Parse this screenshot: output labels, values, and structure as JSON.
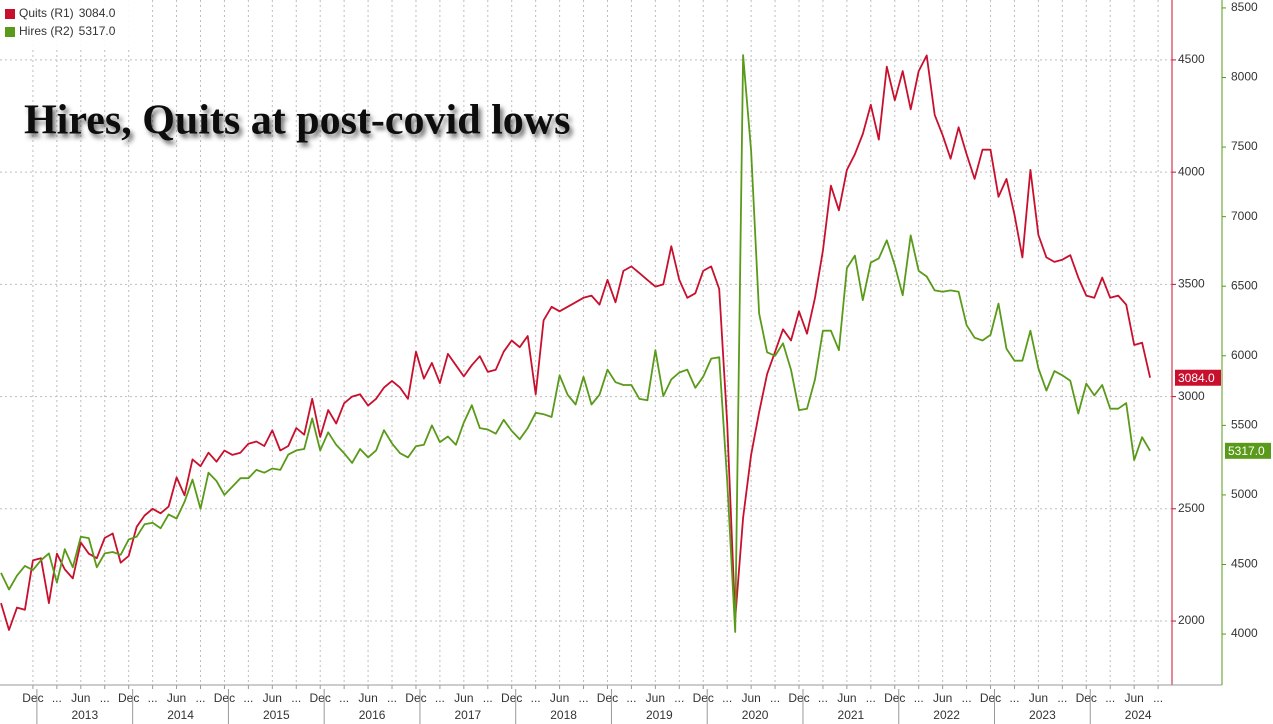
{
  "chart_data": {
    "type": "line",
    "title": "Hires, Quits at post-covid lows",
    "x": [
      "2012-08",
      "2012-09",
      "2012-10",
      "2012-11",
      "2012-12",
      "2013-01",
      "2013-02",
      "2013-03",
      "2013-04",
      "2013-05",
      "2013-06",
      "2013-07",
      "2013-08",
      "2013-09",
      "2013-10",
      "2013-11",
      "2013-12",
      "2014-01",
      "2014-02",
      "2014-03",
      "2014-04",
      "2014-05",
      "2014-06",
      "2014-07",
      "2014-08",
      "2014-09",
      "2014-10",
      "2014-11",
      "2014-12",
      "2015-01",
      "2015-02",
      "2015-03",
      "2015-04",
      "2015-05",
      "2015-06",
      "2015-07",
      "2015-08",
      "2015-09",
      "2015-10",
      "2015-11",
      "2015-12",
      "2016-01",
      "2016-02",
      "2016-03",
      "2016-04",
      "2016-05",
      "2016-06",
      "2016-07",
      "2016-08",
      "2016-09",
      "2016-10",
      "2016-11",
      "2016-12",
      "2017-01",
      "2017-02",
      "2017-03",
      "2017-04",
      "2017-05",
      "2017-06",
      "2017-07",
      "2017-08",
      "2017-09",
      "2017-10",
      "2017-11",
      "2017-12",
      "2018-01",
      "2018-02",
      "2018-03",
      "2018-04",
      "2018-05",
      "2018-06",
      "2018-07",
      "2018-08",
      "2018-09",
      "2018-10",
      "2018-11",
      "2018-12",
      "2019-01",
      "2019-02",
      "2019-03",
      "2019-04",
      "2019-05",
      "2019-06",
      "2019-07",
      "2019-08",
      "2019-09",
      "2019-10",
      "2019-11",
      "2019-12",
      "2020-01",
      "2020-02",
      "2020-03",
      "2020-04",
      "2020-05",
      "2020-06",
      "2020-07",
      "2020-08",
      "2020-09",
      "2020-10",
      "2020-11",
      "2020-12",
      "2021-01",
      "2021-02",
      "2021-03",
      "2021-04",
      "2021-05",
      "2021-06",
      "2021-07",
      "2021-08",
      "2021-09",
      "2021-10",
      "2021-11",
      "2021-12",
      "2022-01",
      "2022-02",
      "2022-03",
      "2022-04",
      "2022-05",
      "2022-06",
      "2022-07",
      "2022-08",
      "2022-09",
      "2022-10",
      "2022-11",
      "2022-12",
      "2023-01",
      "2023-02",
      "2023-03",
      "2023-04",
      "2023-05",
      "2023-06",
      "2023-07",
      "2023-08",
      "2023-09",
      "2023-10",
      "2023-11",
      "2023-12",
      "2024-01",
      "2024-02",
      "2024-03",
      "2024-04",
      "2024-05",
      "2024-06",
      "2024-07",
      "2024-08"
    ],
    "series": [
      {
        "name": "Quits (R1)",
        "last_label": "3084.0",
        "color": "#c8102e",
        "axis": "y",
        "values": [
          2080,
          1960,
          2060,
          2050,
          2270,
          2280,
          2080,
          2300,
          2230,
          2190,
          2350,
          2300,
          2280,
          2370,
          2390,
          2260,
          2290,
          2420,
          2470,
          2500,
          2480,
          2510,
          2640,
          2560,
          2720,
          2690,
          2750,
          2710,
          2760,
          2740,
          2750,
          2790,
          2800,
          2780,
          2850,
          2760,
          2780,
          2860,
          2830,
          2990,
          2820,
          2940,
          2880,
          2970,
          3000,
          3010,
          2960,
          2990,
          3040,
          3070,
          3040,
          2990,
          3200,
          3080,
          3150,
          3060,
          3190,
          3140,
          3090,
          3140,
          3180,
          3110,
          3120,
          3200,
          3250,
          3220,
          3270,
          3010,
          3340,
          3400,
          3380,
          3400,
          3420,
          3440,
          3450,
          3410,
          3520,
          3420,
          3560,
          3580,
          3550,
          3520,
          3490,
          3500,
          3670,
          3520,
          3440,
          3460,
          3560,
          3580,
          3480,
          2880,
          2010,
          2460,
          2740,
          2930,
          3100,
          3200,
          3300,
          3250,
          3380,
          3280,
          3440,
          3650,
          3940,
          3830,
          4010,
          4080,
          4170,
          4300,
          4145,
          4470,
          4320,
          4450,
          4280,
          4450,
          4520,
          4255,
          4165,
          4060,
          4200,
          4080,
          3970,
          4100,
          4100,
          3890,
          3970,
          3810,
          3620,
          4010,
          3720,
          3620,
          3600,
          3610,
          3630,
          3530,
          3450,
          3440,
          3530,
          3440,
          3450,
          3410,
          3230,
          3240,
          3084
        ]
      },
      {
        "name": "Hires (R2)",
        "last_label": "5317.0",
        "color": "#5a9a1a",
        "axis": "y2",
        "values": [
          4440,
          4320,
          4420,
          4490,
          4460,
          4530,
          4580,
          4370,
          4610,
          4480,
          4700,
          4690,
          4480,
          4580,
          4590,
          4570,
          4680,
          4700,
          4790,
          4800,
          4760,
          4860,
          4830,
          4950,
          5110,
          4900,
          5160,
          5100,
          5000,
          5060,
          5120,
          5120,
          5180,
          5160,
          5190,
          5180,
          5290,
          5320,
          5330,
          5550,
          5320,
          5450,
          5360,
          5300,
          5230,
          5330,
          5270,
          5320,
          5465,
          5370,
          5300,
          5270,
          5350,
          5360,
          5500,
          5380,
          5420,
          5360,
          5520,
          5645,
          5480,
          5470,
          5440,
          5540,
          5460,
          5400,
          5480,
          5590,
          5580,
          5560,
          5860,
          5720,
          5650,
          5850,
          5650,
          5720,
          5900,
          5810,
          5790,
          5790,
          5690,
          5680,
          6040,
          5710,
          5830,
          5880,
          5900,
          5770,
          5850,
          5980,
          5990,
          5100,
          4015,
          8160,
          7475,
          6305,
          6025,
          6000,
          6090,
          5900,
          5610,
          5620,
          5830,
          6180,
          6180,
          6040,
          6630,
          6720,
          6400,
          6670,
          6700,
          6830,
          6650,
          6435,
          6865,
          6610,
          6570,
          6470,
          6460,
          6470,
          6460,
          6220,
          6130,
          6110,
          6150,
          6375,
          6050,
          5965,
          5965,
          6180,
          5910,
          5750,
          5890,
          5860,
          5820,
          5585,
          5800,
          5715,
          5790,
          5620,
          5620,
          5660,
          5250,
          5415,
          5317
        ]
      }
    ],
    "ylim": [
      1715,
      4767
    ],
    "yticks": [
      2000,
      2500,
      3000,
      3500,
      4000,
      4500
    ],
    "y2lim": [
      3634,
      8557
    ],
    "y2ticks": [
      4000,
      4500,
      5000,
      5500,
      6000,
      6500,
      7000,
      7500,
      8000,
      8500
    ],
    "xticks": [
      {
        "value": "2012-12",
        "label": "Dec"
      },
      {
        "value": "2013-03",
        "label": "..."
      },
      {
        "value": "2013-06",
        "label": "Jun"
      },
      {
        "value": "2013-09",
        "label": "..."
      },
      {
        "value": "2013-12",
        "label": "Dec"
      },
      {
        "value": "2014-03",
        "label": "..."
      },
      {
        "value": "2014-06",
        "label": "Jun"
      },
      {
        "value": "2014-09",
        "label": "..."
      },
      {
        "value": "2014-12",
        "label": "Dec"
      },
      {
        "value": "2015-03",
        "label": "..."
      },
      {
        "value": "2015-06",
        "label": "Jun"
      },
      {
        "value": "2015-09",
        "label": "..."
      },
      {
        "value": "2015-12",
        "label": "Dec"
      },
      {
        "value": "2016-03",
        "label": "..."
      },
      {
        "value": "2016-06",
        "label": "Jun"
      },
      {
        "value": "2016-09",
        "label": "..."
      },
      {
        "value": "2016-12",
        "label": "Dec"
      },
      {
        "value": "2017-03",
        "label": "..."
      },
      {
        "value": "2017-06",
        "label": "Jun"
      },
      {
        "value": "2017-09",
        "label": "..."
      },
      {
        "value": "2017-12",
        "label": "Dec"
      },
      {
        "value": "2018-03",
        "label": "..."
      },
      {
        "value": "2018-06",
        "label": "Jun"
      },
      {
        "value": "2018-09",
        "label": "..."
      },
      {
        "value": "2018-12",
        "label": "Dec"
      },
      {
        "value": "2019-03",
        "label": "..."
      },
      {
        "value": "2019-06",
        "label": "Jun"
      },
      {
        "value": "2019-09",
        "label": "..."
      },
      {
        "value": "2019-12",
        "label": "Dec"
      },
      {
        "value": "2020-03",
        "label": "..."
      },
      {
        "value": "2020-06",
        "label": "Jun"
      },
      {
        "value": "2020-09",
        "label": "..."
      },
      {
        "value": "2020-12",
        "label": "Dec"
      },
      {
        "value": "2021-03",
        "label": "..."
      },
      {
        "value": "2021-06",
        "label": "Jun"
      },
      {
        "value": "2021-09",
        "label": "..."
      },
      {
        "value": "2021-12",
        "label": "Dec"
      },
      {
        "value": "2022-03",
        "label": "..."
      },
      {
        "value": "2022-06",
        "label": "Jun"
      },
      {
        "value": "2022-09",
        "label": "..."
      },
      {
        "value": "2022-12",
        "label": "Dec"
      },
      {
        "value": "2023-03",
        "label": "..."
      },
      {
        "value": "2023-06",
        "label": "Jun"
      },
      {
        "value": "2023-09",
        "label": "..."
      },
      {
        "value": "2023-12",
        "label": "Dec"
      },
      {
        "value": "2024-03",
        "label": "..."
      },
      {
        "value": "2024-06",
        "label": "Jun"
      },
      {
        "value": "2024-09",
        "label": "..."
      }
    ],
    "years": [
      "2013",
      "2014",
      "2015",
      "2016",
      "2017",
      "2018",
      "2019",
      "2020",
      "2021",
      "2022",
      "2023",
      "2024"
    ],
    "grid": true
  }
}
